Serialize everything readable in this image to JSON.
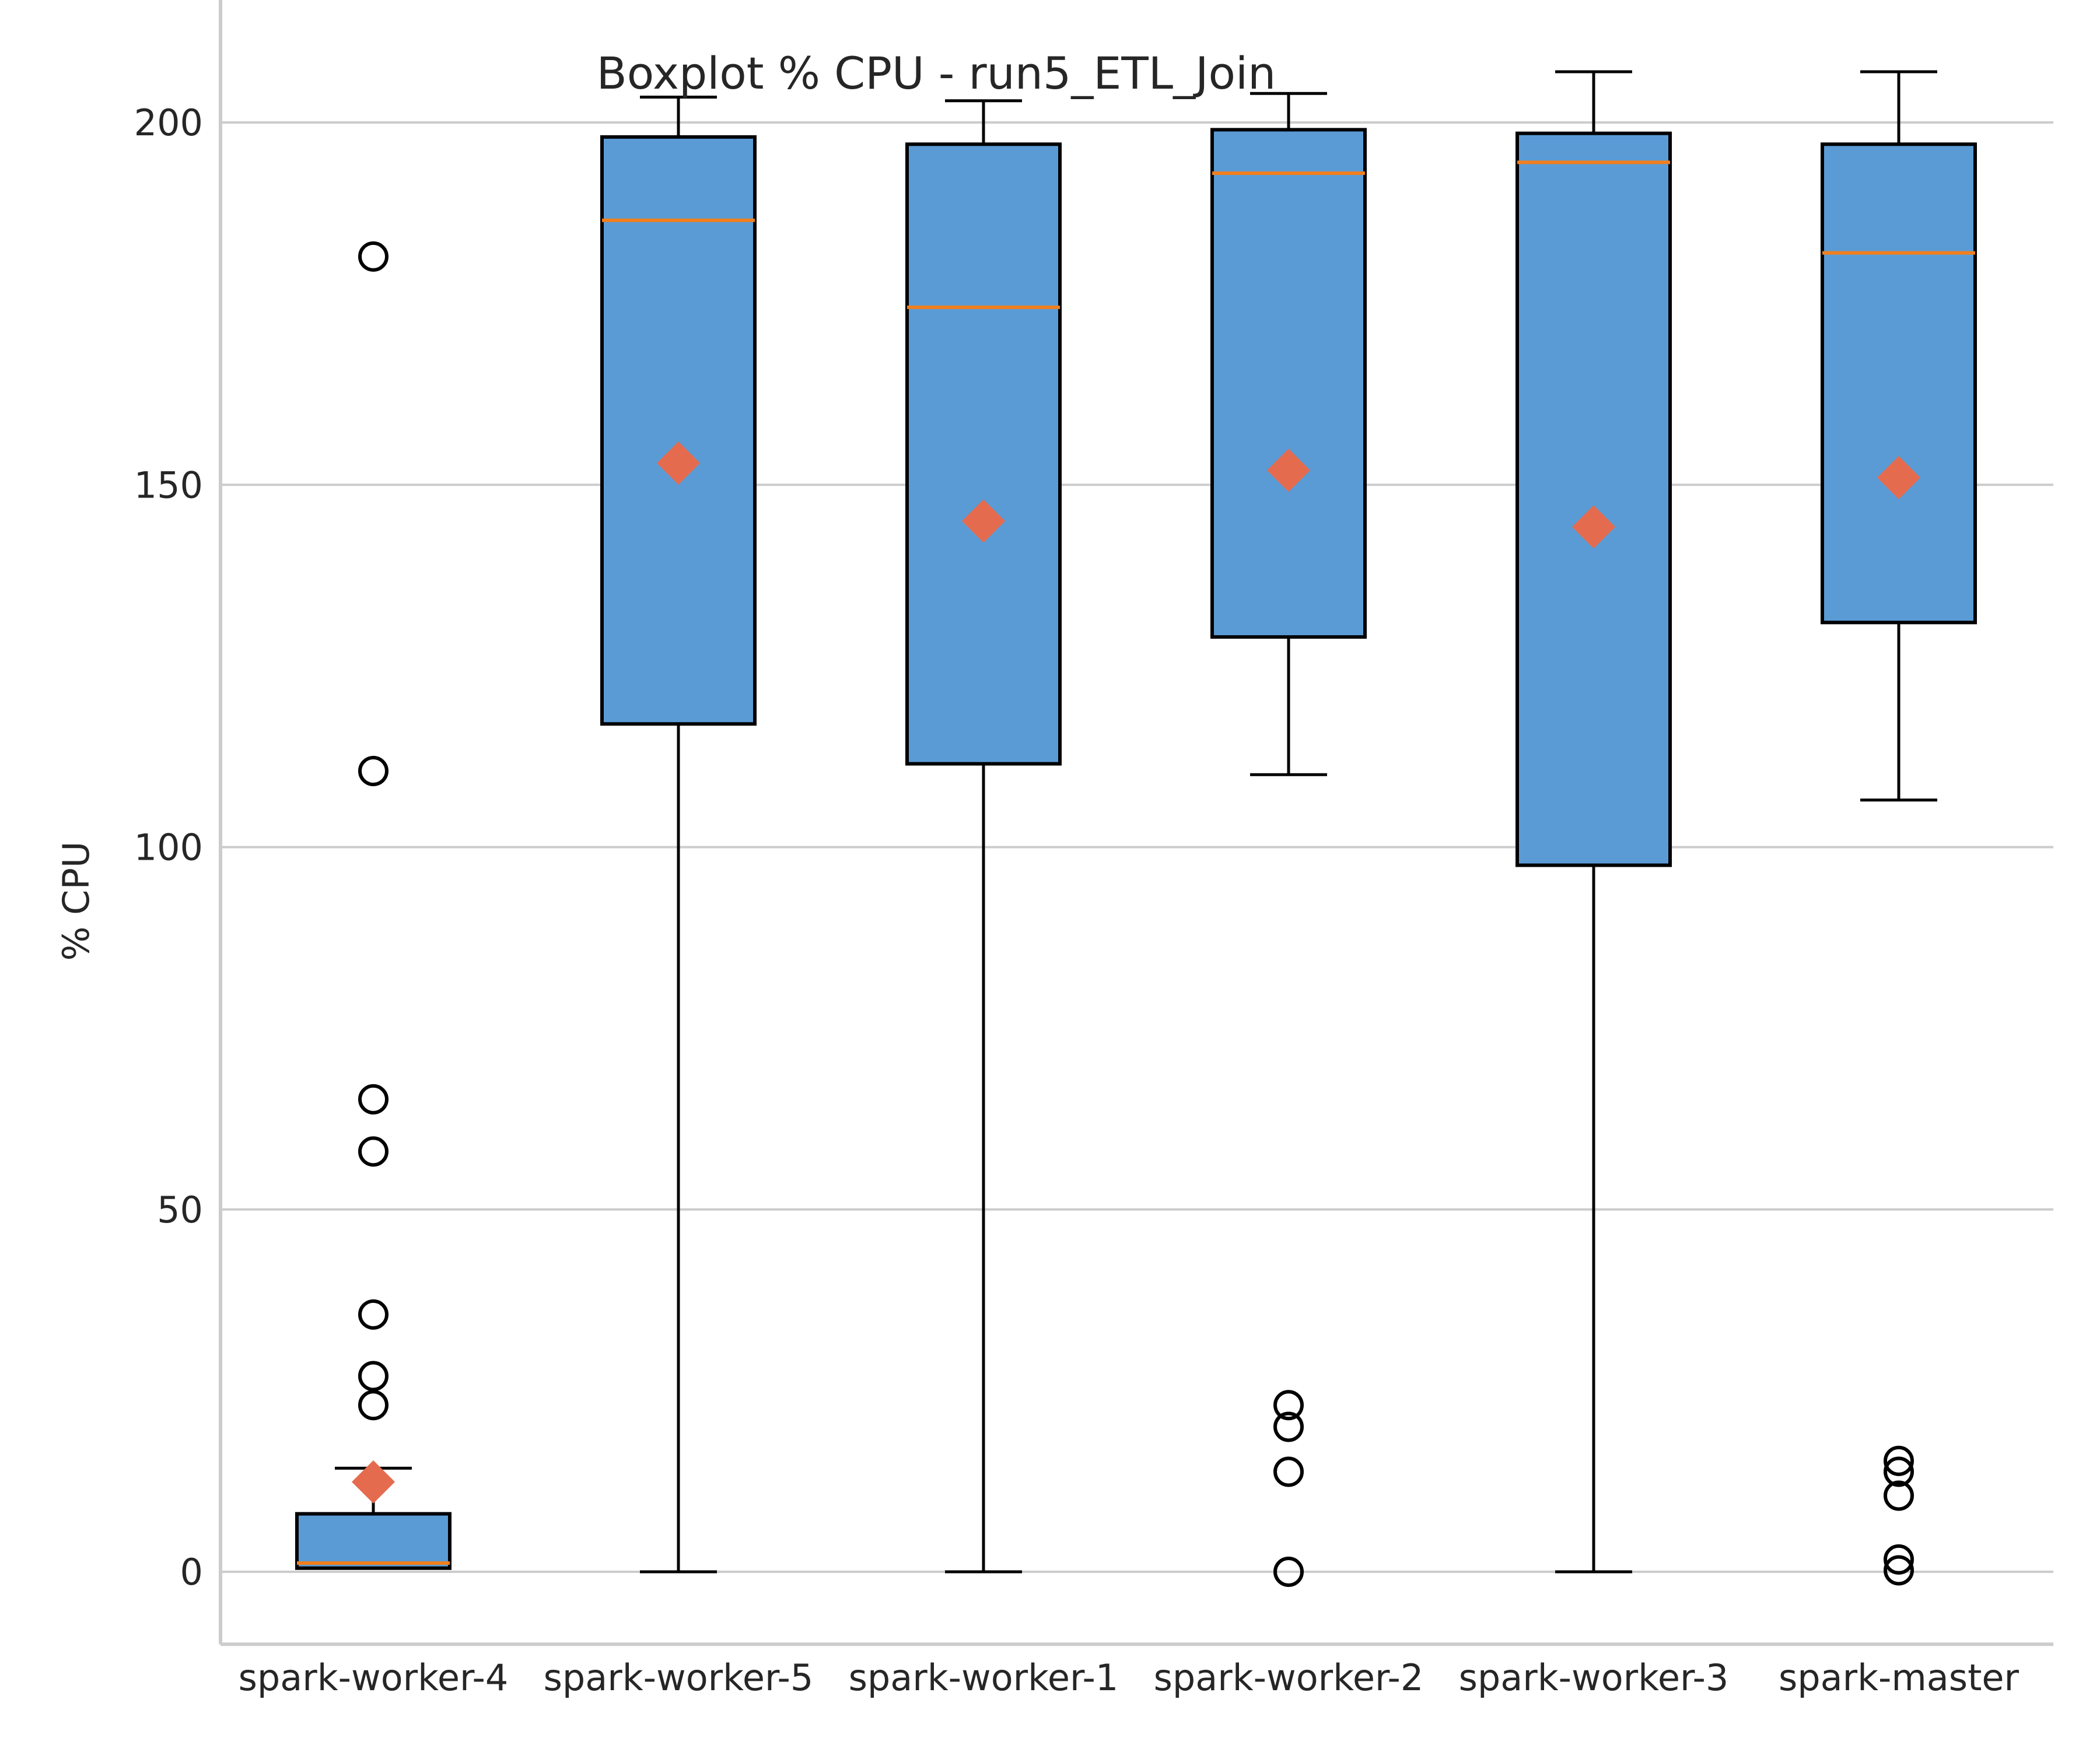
{
  "chart_data": {
    "type": "boxplot",
    "title": "Boxplot % CPU - run5_ETL_Join",
    "xlabel": "",
    "ylabel": "% CPU",
    "ylim": [
      -10,
      218
    ],
    "yticks": [
      0,
      50,
      100,
      150,
      200
    ],
    "grid": "horizontal",
    "categories": [
      "spark-worker-4",
      "spark-worker-5",
      "spark-worker-1",
      "spark-worker-2",
      "spark-worker-3",
      "spark-master"
    ],
    "boxes": [
      {
        "whisker_low": 0.5,
        "q1": 0.5,
        "median": 1.2,
        "q3": 8,
        "whisker_high": 14.3,
        "mean": 12.4,
        "outliers": [
          181.5,
          110.5,
          65.2,
          58,
          35.5,
          27,
          23
        ]
      },
      {
        "whisker_low": 0,
        "q1": 117,
        "median": 186.5,
        "q3": 198,
        "whisker_high": 203.5,
        "mean": 153,
        "outliers": []
      },
      {
        "whisker_low": 0,
        "q1": 111.5,
        "median": 174.5,
        "q3": 197,
        "whisker_high": 203,
        "mean": 145,
        "outliers": []
      },
      {
        "whisker_low": 110,
        "q1": 129,
        "median": 193,
        "q3": 199,
        "whisker_high": 204,
        "mean": 152,
        "outliers": [
          23,
          20,
          13.8,
          0
        ]
      },
      {
        "whisker_low": 0,
        "q1": 97.5,
        "median": 194.5,
        "q3": 198.5,
        "whisker_high": 207,
        "mean": 144.2,
        "outliers": []
      },
      {
        "whisker_low": 106.5,
        "q1": 131,
        "median": 182,
        "q3": 197,
        "whisker_high": 207,
        "mean": 151,
        "outliers": [
          15.3,
          13.8,
          10.5,
          1.7,
          0.2
        ]
      }
    ],
    "colors": {
      "box_fill": "#5b9bd5",
      "box_edge": "#000000",
      "median": "#f07f1e",
      "mean_marker": "#e56b4f",
      "outlier_edge": "#000000",
      "grid": "#cccccc",
      "axis": "#cccccc"
    }
  }
}
